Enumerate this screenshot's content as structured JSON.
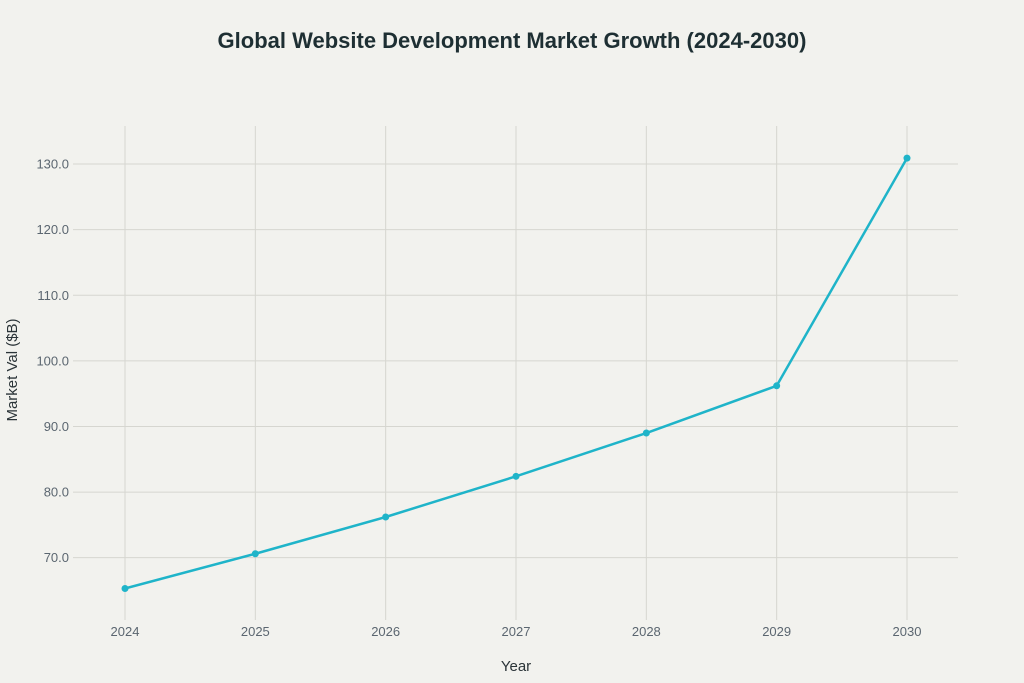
{
  "chart_data": {
    "type": "line",
    "title": "Global Website Development Market Growth (2024-2030)",
    "xlabel": "Year",
    "ylabel": "Market Val ($B)",
    "categories": [
      "2024",
      "2025",
      "2026",
      "2027",
      "2028",
      "2029",
      "2030"
    ],
    "series": [
      {
        "name": "Market Value",
        "values": [
          65.3,
          70.6,
          76.2,
          82.4,
          89.0,
          96.2,
          130.9
        ]
      }
    ],
    "y_ticks": [
      70,
      80,
      90,
      100,
      110,
      120,
      130
    ],
    "y_tick_labels": [
      "70.0",
      "80.0",
      "90.0",
      "100.0",
      "110.0",
      "120.0",
      "130.0"
    ],
    "ylim": [
      60.5,
      135.8
    ],
    "grid": true,
    "line_color": "#1fb4c9",
    "background_color": "#f2f2ee"
  }
}
